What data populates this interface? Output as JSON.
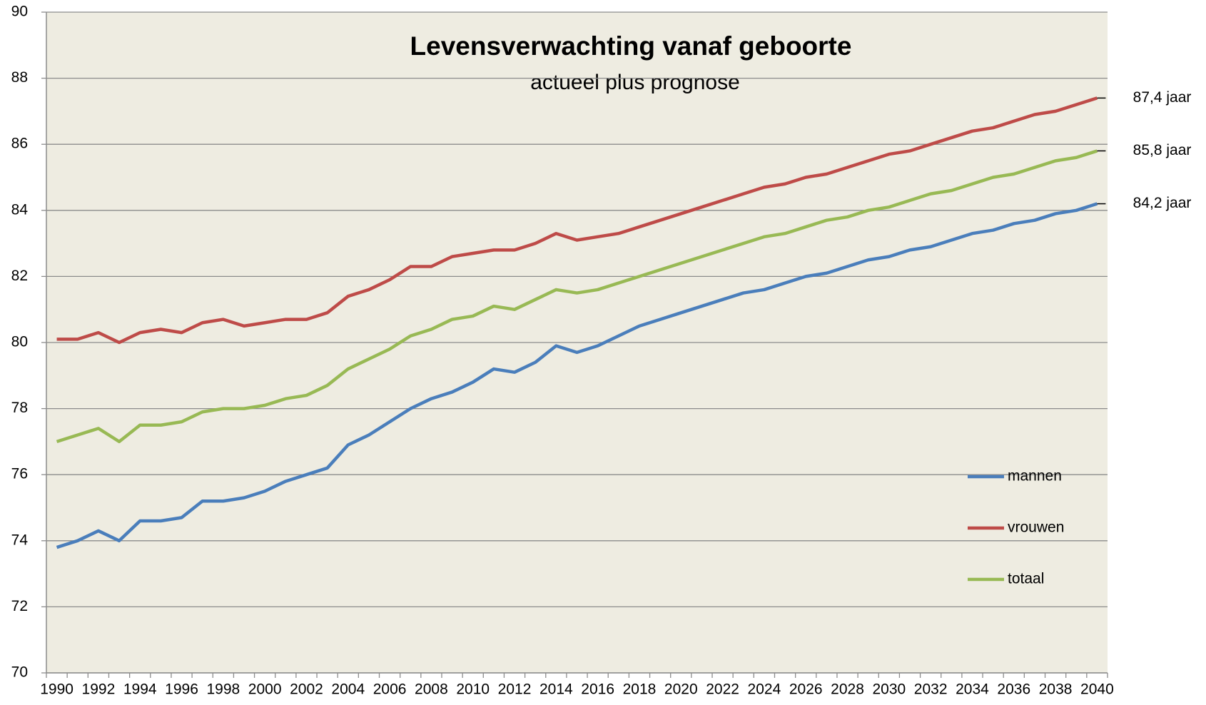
{
  "chart_data": {
    "type": "line",
    "title": "Levensverwachting vanaf geboorte",
    "subtitle": "actueel plus prognose",
    "categories": [
      "1990",
      null,
      "1992",
      null,
      "1994",
      null,
      "1996",
      null,
      "1998",
      null,
      "2000",
      null,
      "2002",
      null,
      "2004",
      null,
      "2006",
      null,
      "2008",
      null,
      "2010",
      null,
      "2012",
      null,
      "2014",
      null,
      "2016",
      null,
      "2018",
      null,
      "2020",
      null,
      "2022",
      null,
      "2024",
      null,
      "2026",
      null,
      "2028",
      null,
      "2030",
      null,
      "2032",
      null,
      "2034",
      null,
      "2036",
      null,
      "2038",
      null,
      "2040"
    ],
    "series": [
      {
        "name": "mannen",
        "color": "#4a7ebb",
        "end_label": "84,2 jaar",
        "values": [
          73.8,
          74.0,
          74.3,
          74.0,
          74.6,
          74.6,
          74.7,
          75.2,
          75.2,
          75.3,
          75.5,
          75.8,
          76.0,
          76.2,
          76.9,
          77.2,
          77.6,
          78.0,
          78.3,
          78.5,
          78.8,
          79.2,
          79.1,
          79.4,
          79.9,
          79.7,
          79.9,
          80.2,
          80.5,
          80.7,
          80.9,
          81.1,
          81.3,
          81.5,
          81.6,
          81.8,
          82.0,
          82.1,
          82.3,
          82.5,
          82.6,
          82.8,
          82.9,
          83.1,
          83.3,
          83.4,
          83.6,
          83.7,
          83.9,
          84.0,
          84.2
        ]
      },
      {
        "name": "vrouwen",
        "color": "#be4b48",
        "end_label": "87,4 jaar",
        "values": [
          80.1,
          80.1,
          80.3,
          80.0,
          80.3,
          80.4,
          80.3,
          80.6,
          80.7,
          80.5,
          80.6,
          80.7,
          80.7,
          80.9,
          81.4,
          81.6,
          81.9,
          82.3,
          82.3,
          82.6,
          82.7,
          82.8,
          82.8,
          83.0,
          83.3,
          83.1,
          83.2,
          83.3,
          83.5,
          83.7,
          83.9,
          84.1,
          84.3,
          84.5,
          84.7,
          84.8,
          85.0,
          85.1,
          85.3,
          85.5,
          85.7,
          85.8,
          86.0,
          86.2,
          86.4,
          86.5,
          86.7,
          86.9,
          87.0,
          87.2,
          87.4
        ]
      },
      {
        "name": "totaal",
        "color": "#98b954",
        "end_label": "85,8 jaar",
        "values": [
          77.0,
          77.2,
          77.4,
          77.0,
          77.5,
          77.5,
          77.6,
          77.9,
          78.0,
          78.0,
          78.1,
          78.3,
          78.4,
          78.7,
          79.2,
          79.5,
          79.8,
          80.2,
          80.4,
          80.7,
          80.8,
          81.1,
          81.0,
          81.3,
          81.6,
          81.5,
          81.6,
          81.8,
          82.0,
          82.2,
          82.4,
          82.6,
          82.8,
          83.0,
          83.2,
          83.3,
          83.5,
          83.7,
          83.8,
          84.0,
          84.1,
          84.3,
          84.5,
          84.6,
          84.8,
          85.0,
          85.1,
          85.3,
          85.5,
          85.6,
          85.8
        ]
      }
    ],
    "ylim": [
      70,
      90
    ],
    "yticks": [
      70,
      72,
      74,
      76,
      78,
      80,
      82,
      84,
      86,
      88,
      90
    ],
    "grid": true,
    "legend": "lower right"
  }
}
